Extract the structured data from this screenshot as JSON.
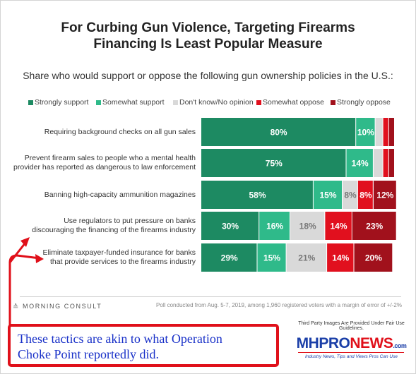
{
  "title_line1": "For Curbing Gun Violence, Targeting Firearms",
  "title_line2": "Financing Is Least Popular Measure",
  "subtitle": "Share who would support or oppose the following gun ownership policies in the U.S.:",
  "brand": "MORNING CONSULT",
  "footnote": "Poll conducted from Aug. 5-7, 2019, among 1,960 registered voters with a margin of error of +/-2%",
  "callout": {
    "line1": "These tactics are akin to what Operation",
    "line2": "Choke Point reportedly did."
  },
  "badge": {
    "top_text": "Third Party Images Are Provided Under Fair Use Guidelines.",
    "logo_part1": "MHPRO",
    "logo_part2": "NEWS",
    "logo_part3": ".com",
    "tagline": "Industry News, Tips and Views Pros Can Use"
  },
  "colors": {
    "strongly_support": "#1d8a62",
    "somewhat_support": "#2fba8a",
    "dont_know": "#d9d9d9",
    "somewhat_oppose": "#e1101e",
    "strongly_oppose": "#a1111c",
    "arrow": "#e0101a"
  },
  "chart_data": {
    "type": "bar",
    "orientation": "horizontal-stacked",
    "categories": [
      [
        "Requiring background checks on all gun sales"
      ],
      [
        "Prevent firearm sales to people who a mental health",
        "provider has reported as dangerous to law enforcement"
      ],
      [
        "Banning high-capacity ammunition magazines"
      ],
      [
        "Use regulators to put pressure on banks",
        "discouraging the financing of the firearms industry"
      ],
      [
        "Eliminate taxpayer-funded insurance for banks",
        "that provide services to the firearms industry"
      ]
    ],
    "series": [
      {
        "name": "Strongly support",
        "color_key": "strongly_support",
        "values": [
          80,
          75,
          58,
          30,
          29
        ],
        "labels": [
          "80%",
          "75%",
          "58%",
          "30%",
          "29%"
        ]
      },
      {
        "name": "Somewhat support",
        "color_key": "somewhat_support",
        "values": [
          10,
          14,
          15,
          16,
          15
        ],
        "labels": [
          "10%",
          "14%",
          "15%",
          "16%",
          "15%"
        ]
      },
      {
        "name": "Don't know/No opinion",
        "color_key": "dont_know",
        "values": [
          4,
          5,
          8,
          18,
          21
        ],
        "labels": [
          "",
          "",
          "8%",
          "18%",
          "21%"
        ]
      },
      {
        "name": "Somewhat oppose",
        "color_key": "somewhat_oppose",
        "values": [
          3,
          3,
          8,
          14,
          14
        ],
        "labels": [
          "",
          "",
          "8%",
          "14%",
          "14%"
        ]
      },
      {
        "name": "Strongly oppose",
        "color_key": "strongly_oppose",
        "values": [
          3,
          3,
          12,
          23,
          20
        ],
        "labels": [
          "",
          "",
          "12%",
          "23%",
          "20%"
        ]
      }
    ],
    "xlim": [
      0,
      100
    ],
    "legend_position": "top"
  }
}
